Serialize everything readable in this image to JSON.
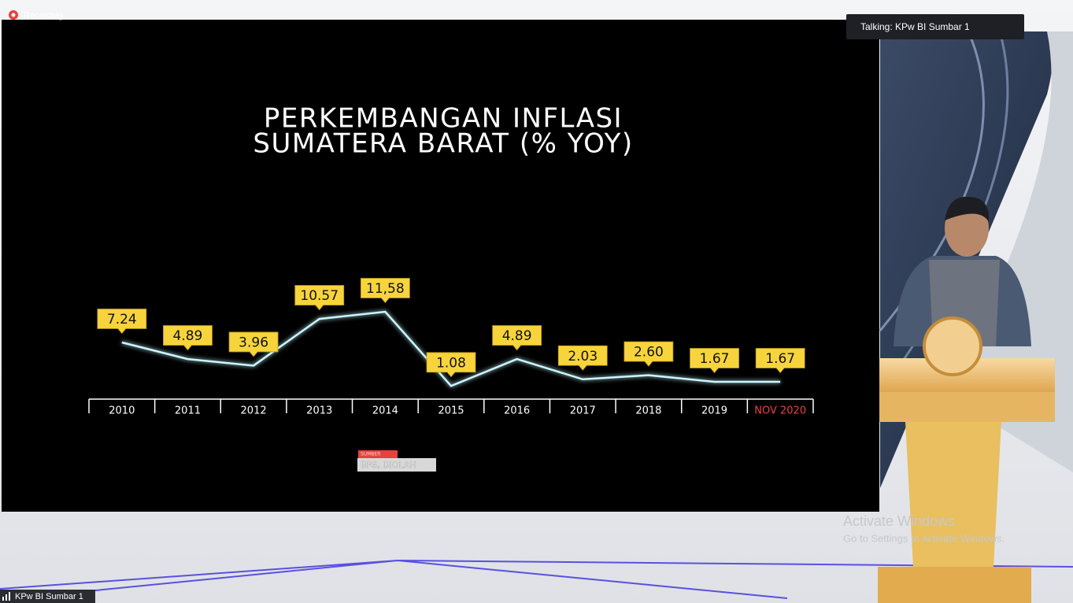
{
  "recording": "Recording",
  "talking": "Talking: KPw BI Sumbar 1",
  "participant": "KPw BI Sumbar 1",
  "watermark": {
    "title": "Activate Windows",
    "text": "Go to Settings to activate Windows."
  },
  "chart_data": {
    "type": "line",
    "title": "PERKEMBANGAN INFLASI",
    "subtitle": "SUMATERA BARAT (% YOY)",
    "categories": [
      "2010",
      "2011",
      "2012",
      "2013",
      "2014",
      "2015",
      "2016",
      "2017",
      "2018",
      "2019",
      "NOV 2020"
    ],
    "values": [
      7.24,
      4.89,
      3.96,
      10.57,
      11.58,
      1.08,
      4.89,
      2.03,
      2.6,
      1.67,
      1.67
    ],
    "value_labels": [
      "7.24",
      "4.89",
      "3.96",
      "10.57",
      "11,58",
      "1.08",
      "4.89",
      "2.03",
      "2.60",
      "1.67",
      "1.67"
    ],
    "color": "#c9f6ff",
    "label_color": "#f7d43c",
    "x_label_colors": [
      "#ffffff",
      "#ffffff",
      "#ffffff",
      "#ffffff",
      "#ffffff",
      "#ffffff",
      "#ffffff",
      "#ffffff",
      "#ffffff",
      "#ffffff",
      "#e8413f"
    ],
    "source_label": "SUMBER",
    "source": "BPS, DIOLAH"
  }
}
